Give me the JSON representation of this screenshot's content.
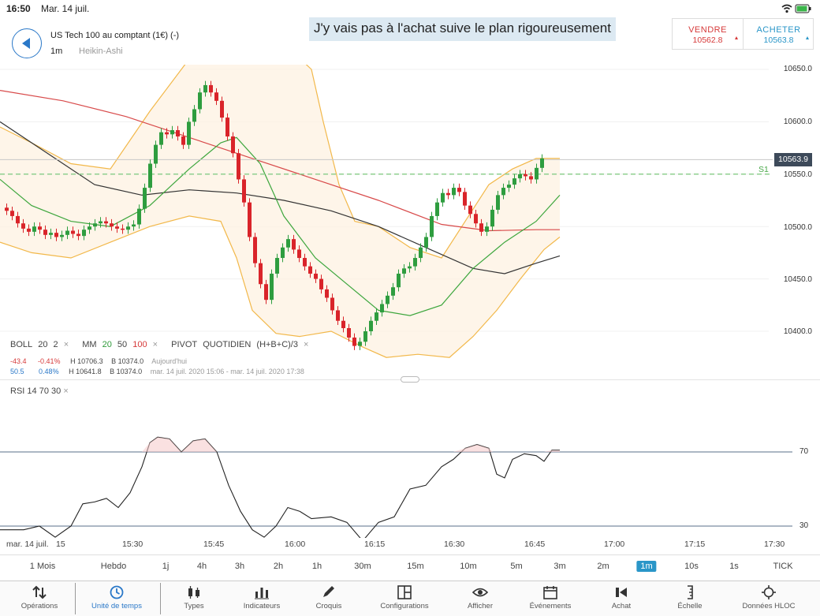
{
  "status": {
    "time": "16:50",
    "date": "Mar. 14 juil."
  },
  "header": {
    "instrument": "US Tech 100 au comptant (1€) (-)",
    "timeframe": "1m",
    "chart_type": "Heikin-Ashi",
    "annotation": "J'y vais pas à l'achat suive le plan rigoureusement",
    "sell": {
      "label": "VENDRE",
      "price": "10562.8"
    },
    "buy": {
      "label": "ACHETER",
      "price": "10563.8"
    }
  },
  "price_axis": {
    "labels": [
      "10650.0",
      "10600.0",
      "10550.0",
      "10500.0",
      "10450.0",
      "10400.0"
    ],
    "current": "10563.9",
    "s1_label": "S1"
  },
  "legend": {
    "boll": {
      "name": "BOLL",
      "p1": "20",
      "p2": "2"
    },
    "mm": {
      "name": "MM",
      "p1": "20",
      "p2": "50",
      "p3": "100"
    },
    "pivot": {
      "name": "PIVOT",
      "mode": "QUOTIDIEN",
      "formula": "(H+B+C)/3"
    },
    "close": "×",
    "row2": {
      "change": "-43.4",
      "change_pct": "-0.41%",
      "high": "H 10706.3",
      "low": "B 10374.0",
      "period": "Aujourd'hui"
    },
    "row3": {
      "change": "50.5",
      "change_pct": "0.48%",
      "high": "H 10641.8",
      "low": "B 10374.0",
      "period": "mar. 14 juil. 2020 15:06 - mar. 14 juil. 2020 17:38"
    }
  },
  "rsi": {
    "name": "RSI",
    "p1": "14",
    "p2": "70",
    "p3": "30",
    "level_high": "70",
    "level_low": "30"
  },
  "time_axis": {
    "date": "mar. 14 juil.",
    "labels": [
      "15",
      "15:30",
      "15:45",
      "16:00",
      "16:15",
      "16:30",
      "16:45",
      "17:00",
      "17:15",
      "17:30"
    ]
  },
  "timeframes": [
    "1 Mois",
    "Hebdo",
    "1j",
    "4h",
    "3h",
    "2h",
    "1h",
    "30m",
    "15m",
    "10m",
    "5m",
    "3m",
    "2m",
    "1m",
    "10s",
    "1s",
    "TICK"
  ],
  "active_timeframe": "1m",
  "nav": [
    {
      "label": "Opérations",
      "icon": "sort-arrows-icon"
    },
    {
      "label": "Unité de temps",
      "icon": "clock-icon"
    },
    {
      "label": "Types",
      "icon": "candles-icon"
    },
    {
      "label": "Indicateurs",
      "icon": "bars-icon"
    },
    {
      "label": "Croquis",
      "icon": "pencil-icon"
    },
    {
      "label": "Configurations",
      "icon": "layout-icon"
    },
    {
      "label": "Afficher",
      "icon": "eye-icon"
    },
    {
      "label": "Événements",
      "icon": "calendar-icon"
    },
    {
      "label": "Achat",
      "icon": "speaker-icon"
    },
    {
      "label": "Échelle",
      "icon": "scale-icon"
    },
    {
      "label": "Données HLOC",
      "icon": "crosshair-icon"
    }
  ],
  "colors": {
    "bull": "#2e9d3f",
    "bear": "#d9242a",
    "boll": "#f2b84a",
    "ma20": "#3da63d",
    "ma50": "#333333",
    "ma100": "#d84a4a",
    "accent": "#2a96c8"
  }
}
